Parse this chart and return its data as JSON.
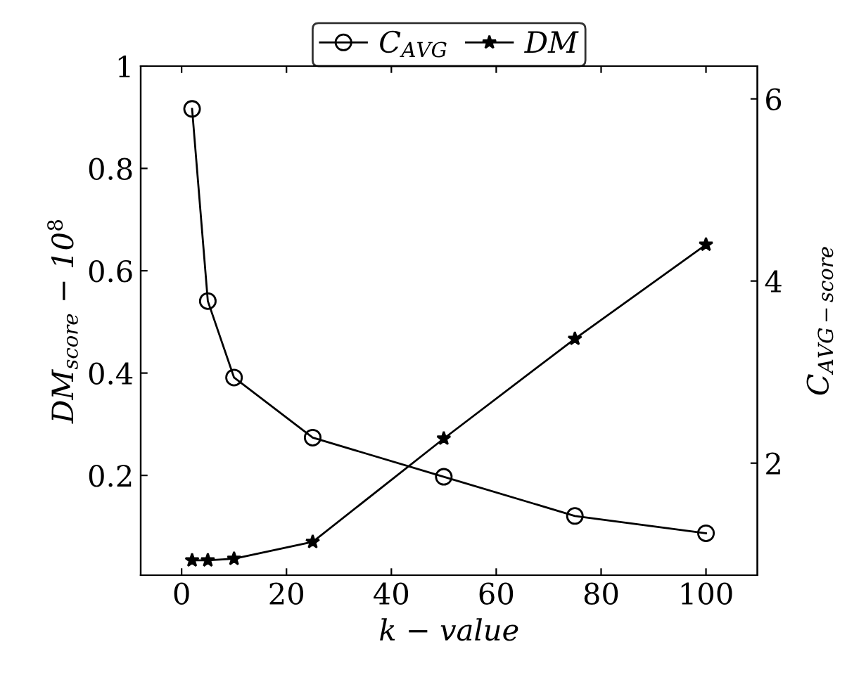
{
  "chart_data": {
    "type": "line",
    "xlabel": "k − value",
    "ylabel": "DM$_{score}$ − 10$^{8}$",
    "y2label": "C$_{AVG−score}$",
    "x": [
      2,
      5,
      10,
      25,
      50,
      75,
      100
    ],
    "series": [
      {
        "name": "C$_{AVG}$",
        "color": "#000000",
        "marker": "circle",
        "axis": "y2",
        "values": [
          5.89,
          3.78,
          2.94,
          2.28,
          1.85,
          1.42,
          1.23
        ]
      },
      {
        "name": "DM",
        "color": "#000000",
        "marker": "star",
        "values": [
          0.034,
          0.034,
          0.037,
          0.07,
          0.272,
          0.467,
          0.651
        ]
      }
    ],
    "xlim": [
      -7.8,
      109.8
    ],
    "xticks": [
      0,
      20,
      40,
      60,
      80,
      100
    ],
    "ylim": [
      0.005,
      1
    ],
    "yticks": [
      0.2,
      0.4,
      0.6,
      0.8,
      1
    ],
    "y2lim": [
      0.77,
      6.36
    ],
    "y2ticks": [
      2,
      4,
      6
    ],
    "legend": "top",
    "grid": false,
    "line_style": "solid"
  }
}
